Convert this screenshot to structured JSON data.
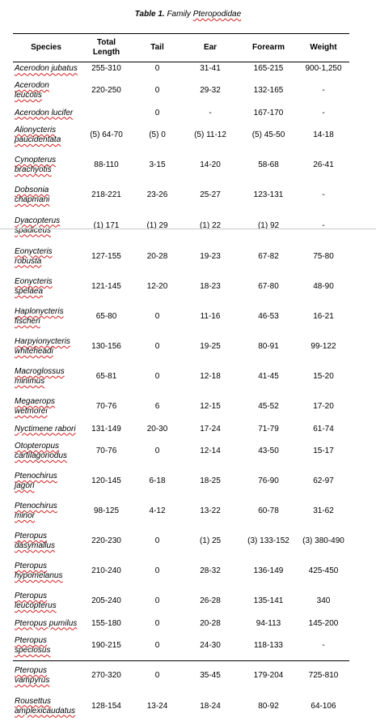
{
  "caption": {
    "lead": "Table 1.",
    "family_word": "Family",
    "family_name": "Pteropodidae"
  },
  "headers": {
    "species": "Species",
    "total_length": "Total Length",
    "tail": "Tail",
    "ear": "Ear",
    "forearm": "Forearm",
    "weight": "Weight"
  },
  "rows": [
    {
      "species": [
        "Acerodon jubatus"
      ],
      "total": "255-310",
      "tail": "0",
      "ear": "31-41",
      "forearm": "165-215",
      "weight": "900-1,250"
    },
    {
      "species": [
        "Acerodon",
        "leucotis"
      ],
      "total": "220-250",
      "tail": "0",
      "ear": "29-32",
      "forearm": "132-165",
      "weight": "-"
    },
    {
      "species": [
        "Acerodon lucifer"
      ],
      "total": "",
      "tail": "0",
      "ear": "-",
      "forearm": "167-170",
      "weight": "-"
    },
    {
      "species": [
        "Alionycteris",
        "paucidentata"
      ],
      "total": "(5) 64-70",
      "tail": "(5) 0",
      "ear": "(5) 11-12",
      "forearm": "(5) 45-50",
      "weight": "14-18"
    },
    {
      "species": [
        "Cynopterus",
        "brachyotis"
      ],
      "total": "88-110",
      "tail": "3-15",
      "ear": "14-20",
      "forearm": "58-68",
      "weight": "26-41"
    },
    {
      "species": [
        "Dobsonia",
        "chapmani"
      ],
      "total": "218-221",
      "tail": "23-26",
      "ear": "25-27",
      "forearm": "123-131",
      "weight": "-"
    },
    {
      "species": [
        "Dyacopterus",
        "spadiceus"
      ],
      "total": "(1) 171",
      "tail": "(1) 29",
      "ear": "(1) 22",
      "forearm": "(1) 92",
      "weight": "-"
    },
    {
      "species": [
        "Eonycteris",
        "robusta"
      ],
      "total": "127-155",
      "tail": "20-28",
      "ear": "19-23",
      "forearm": "67-82",
      "weight": "75-80"
    },
    {
      "species": [
        "Eonycteris",
        "spelaea"
      ],
      "total": "121-145",
      "tail": "12-20",
      "ear": "18-23",
      "forearm": "67-80",
      "weight": "48-90"
    },
    {
      "species": [
        "Haplonycteris",
        "fischeri"
      ],
      "total": "65-80",
      "tail": "0",
      "ear": "11-16",
      "forearm": "46-53",
      "weight": "16-21"
    },
    {
      "species": [
        "Harpyionycteris",
        "whiteheadi"
      ],
      "total": "130-156",
      "tail": "0",
      "ear": "19-25",
      "forearm": "80-91",
      "weight": "99-122"
    },
    {
      "species": [
        "Macroglossus",
        "minimus"
      ],
      "total": "65-81",
      "tail": "0",
      "ear": "12-18",
      "forearm": "41-45",
      "weight": "15-20"
    },
    {
      "species": [
        "Megaerops",
        "wetmorei"
      ],
      "total": "70-76",
      "tail": "6",
      "ear": "12-15",
      "forearm": "45-52",
      "weight": "17-20"
    },
    {
      "species": [
        "Nyctimene rabori"
      ],
      "total": "131-149",
      "tail": "20-30",
      "ear": "17-24",
      "forearm": "71-79",
      "weight": "61-74"
    },
    {
      "species": [
        "Otopteropus",
        "cartilagonodus"
      ],
      "total": "70-76",
      "tail": "0",
      "ear": "12-14",
      "forearm": "43-50",
      "weight": "15-17"
    },
    {
      "species": [
        "Ptenochirus",
        "jagori"
      ],
      "total": "120-145",
      "tail": "6-18",
      "ear": "18-25",
      "forearm": "76-90",
      "weight": "62-97"
    },
    {
      "species": [
        "Ptenochirus",
        "minor"
      ],
      "total": "98-125",
      "tail": "4-12",
      "ear": "13-22",
      "forearm": "60-78",
      "weight": "31-62"
    },
    {
      "species": [
        "Pteropus",
        "dasymallus"
      ],
      "total": "220-230",
      "tail": "0",
      "ear": "(1) 25",
      "forearm": "(3) 133-152",
      "weight": "(3) 380-490"
    },
    {
      "species": [
        "Pteropus",
        "hypomelanus"
      ],
      "total": "210-240",
      "tail": "0",
      "ear": "28-32",
      "forearm": "136-149",
      "weight": "425-450"
    },
    {
      "species": [
        "Pteropus",
        "leucopterus"
      ],
      "total": "205-240",
      "tail": "0",
      "ear": "26-28",
      "forearm": "135-141",
      "weight": "340"
    },
    {
      "species": [
        "Pteropus pumilus"
      ],
      "total": "155-180",
      "tail": "0",
      "ear": "20-28",
      "forearm": "94-113",
      "weight": "145-200"
    },
    {
      "species": [
        "Pteropus",
        "speciosus"
      ],
      "total": "190-215",
      "tail": "0",
      "ear": "24-30",
      "forearm": "118-133",
      "weight": "-"
    },
    {
      "species": [
        "Pteropus",
        "vampyrus"
      ],
      "total": "270-320",
      "tail": "0",
      "ear": "35-45",
      "forearm": "179-204",
      "weight": "725-810"
    },
    {
      "species": [
        "Rousettus",
        "amplexicaudatus"
      ],
      "total": "128-154",
      "tail": "13-24",
      "ear": "18-24",
      "forearm": "80-92",
      "weight": "64-106"
    }
  ]
}
